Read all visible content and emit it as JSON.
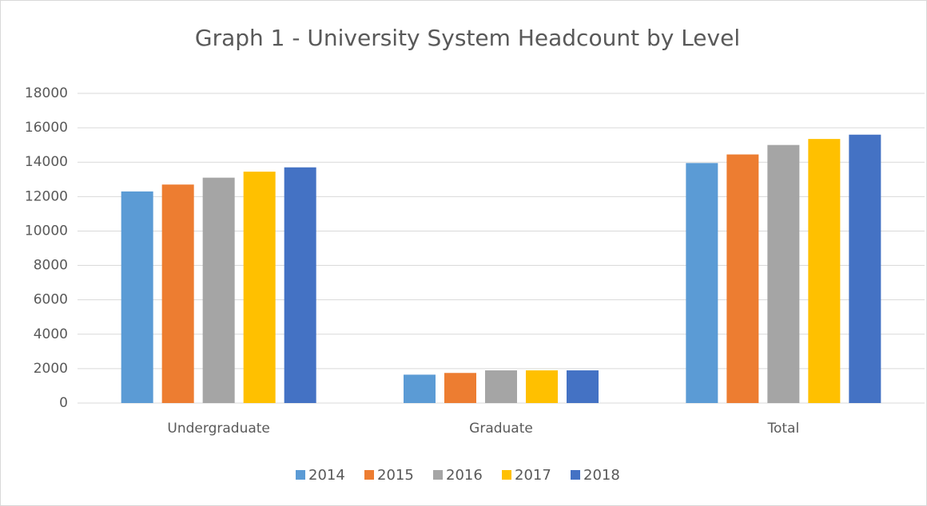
{
  "chart_data": {
    "type": "bar",
    "title": "Graph 1 - University System Headcount by Level",
    "categories": [
      "Undergraduate",
      "Graduate",
      "Total"
    ],
    "series": [
      {
        "name": "2014",
        "color": "#5b9bd5",
        "values": [
          12300,
          1650,
          13950
        ]
      },
      {
        "name": "2015",
        "color": "#ed7d31",
        "values": [
          12700,
          1750,
          14450
        ]
      },
      {
        "name": "2016",
        "color": "#a5a5a5",
        "values": [
          13100,
          1900,
          15000
        ]
      },
      {
        "name": "2017",
        "color": "#ffc000",
        "values": [
          13450,
          1900,
          15350
        ]
      },
      {
        "name": "2018",
        "color": "#4472c4",
        "values": [
          13700,
          1900,
          15600
        ]
      }
    ],
    "ylim": [
      0,
      18000
    ],
    "yticks": [
      0,
      2000,
      4000,
      6000,
      8000,
      10000,
      12000,
      14000,
      16000,
      18000
    ],
    "grid": true,
    "legend": "bottom"
  }
}
